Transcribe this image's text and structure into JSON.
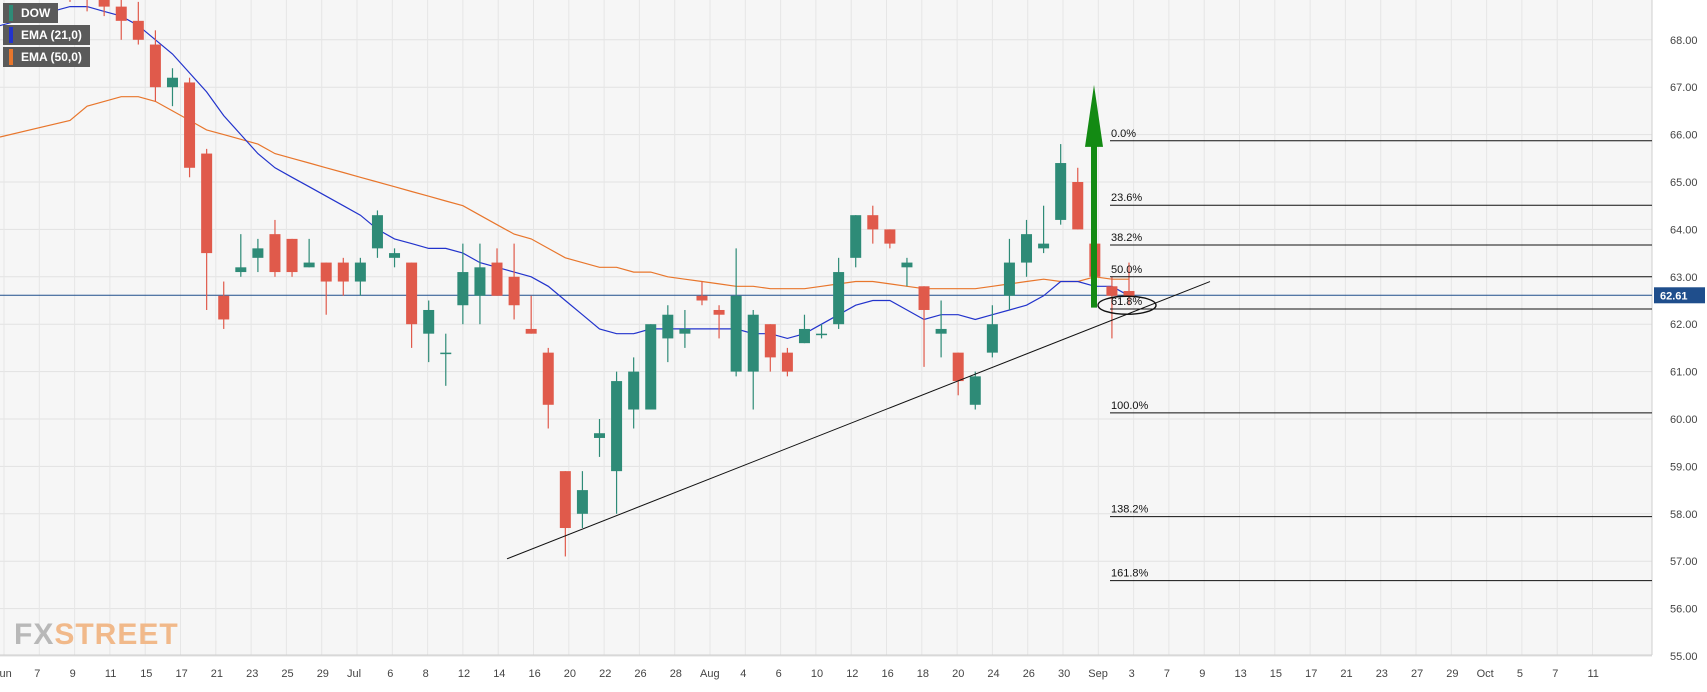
{
  "chart_data": {
    "type": "candlestick",
    "symbol": "DOW",
    "last_price_label": "62.61",
    "last_price": 62.61,
    "ylim": [
      55.0,
      69.0
    ],
    "y_ticks": [
      "68.00",
      "67.00",
      "66.00",
      "65.00",
      "64.00",
      "63.00",
      "62.00",
      "61.00",
      "60.00",
      "59.00",
      "58.00",
      "57.00",
      "56.00",
      "55.00"
    ],
    "x_ticks": [
      "Jun",
      "7",
      "9",
      "11",
      "15",
      "17",
      "21",
      "23",
      "25",
      "29",
      "Jul",
      "6",
      "8",
      "12",
      "14",
      "16",
      "20",
      "22",
      "26",
      "28",
      "Aug",
      "4",
      "6",
      "10",
      "12",
      "16",
      "18",
      "20",
      "24",
      "26",
      "30",
      "Sep",
      "3",
      "7",
      "9",
      "13",
      "15",
      "17",
      "21",
      "23",
      "27",
      "29",
      "Oct",
      "5",
      "7",
      "11"
    ],
    "grid": true,
    "legend": [
      {
        "label": "DOW",
        "color": "#2e8b77"
      },
      {
        "label": "EMA (21,0)",
        "color": "#2233cc"
      },
      {
        "label": "EMA (50,0)",
        "color": "#e8762c"
      }
    ],
    "candles": [
      [
        69.6,
        70.2,
        68.8,
        69.1
      ],
      [
        69.1,
        69.8,
        68.6,
        68.9
      ],
      [
        68.9,
        69.4,
        68.5,
        68.7
      ],
      [
        68.7,
        69.1,
        68.0,
        68.4
      ],
      [
        68.4,
        68.8,
        67.9,
        68.0
      ],
      [
        67.9,
        68.2,
        66.7,
        67.0
      ],
      [
        67.0,
        67.4,
        66.6,
        67.2
      ],
      [
        67.1,
        67.2,
        65.1,
        65.3
      ],
      [
        65.6,
        65.7,
        62.3,
        63.5
      ],
      [
        62.6,
        62.9,
        61.9,
        62.1
      ],
      [
        63.1,
        63.9,
        63.0,
        63.2
      ],
      [
        63.4,
        63.8,
        63.1,
        63.6
      ],
      [
        63.9,
        64.2,
        63.0,
        63.1
      ],
      [
        63.8,
        63.8,
        63.0,
        63.1
      ],
      [
        63.2,
        63.8,
        63.2,
        63.3
      ],
      [
        63.3,
        63.3,
        62.2,
        62.9
      ],
      [
        63.3,
        63.4,
        62.6,
        62.9
      ],
      [
        62.9,
        63.4,
        62.6,
        63.3
      ],
      [
        63.6,
        64.4,
        63.4,
        64.3
      ],
      [
        63.4,
        63.6,
        63.2,
        63.5
      ],
      [
        63.3,
        63.3,
        61.5,
        62.0
      ],
      [
        61.8,
        62.5,
        61.2,
        62.3
      ],
      [
        61.4,
        61.8,
        60.7,
        61.4
      ],
      [
        62.4,
        63.7,
        62.0,
        63.1
      ],
      [
        62.6,
        63.7,
        62.0,
        63.2
      ],
      [
        63.3,
        63.6,
        62.6,
        62.6
      ],
      [
        63.0,
        63.7,
        62.1,
        62.4
      ],
      [
        61.9,
        62.6,
        61.8,
        61.8
      ],
      [
        61.4,
        61.5,
        59.8,
        60.3
      ],
      [
        58.9,
        58.9,
        57.1,
        57.7
      ],
      [
        58.0,
        58.9,
        57.7,
        58.5
      ],
      [
        59.6,
        60.0,
        59.2,
        59.7
      ],
      [
        58.9,
        61.0,
        58.0,
        60.8
      ],
      [
        60.2,
        61.3,
        59.8,
        61.0
      ],
      [
        60.2,
        62.0,
        60.2,
        62.0
      ],
      [
        61.7,
        62.4,
        61.2,
        62.2
      ],
      [
        61.8,
        62.3,
        61.5,
        61.9
      ],
      [
        62.6,
        62.9,
        62.4,
        62.5
      ],
      [
        62.3,
        62.4,
        61.7,
        62.2
      ],
      [
        61.0,
        63.6,
        60.9,
        62.6
      ],
      [
        61.0,
        62.3,
        60.2,
        62.2
      ],
      [
        62.0,
        62.0,
        61.0,
        61.3
      ],
      [
        61.4,
        61.5,
        60.9,
        61.0
      ],
      [
        61.6,
        62.2,
        61.6,
        61.9
      ],
      [
        61.8,
        62.0,
        61.7,
        61.8
      ],
      [
        62.0,
        63.4,
        61.9,
        63.1
      ],
      [
        63.4,
        64.3,
        63.2,
        64.3
      ],
      [
        64.3,
        64.5,
        63.7,
        64.0
      ],
      [
        64.0,
        64.0,
        63.6,
        63.7
      ],
      [
        63.2,
        63.4,
        62.8,
        63.3
      ],
      [
        62.8,
        62.8,
        61.1,
        62.3
      ],
      [
        61.8,
        62.5,
        61.3,
        61.9
      ],
      [
        61.4,
        61.4,
        60.5,
        60.8
      ],
      [
        60.3,
        61.0,
        60.2,
        60.9
      ],
      [
        61.4,
        62.4,
        61.3,
        62.0
      ],
      [
        62.6,
        63.8,
        62.3,
        63.3
      ],
      [
        63.3,
        64.2,
        63.0,
        63.9
      ],
      [
        63.6,
        64.5,
        63.5,
        63.7
      ],
      [
        64.2,
        65.8,
        64.1,
        65.4
      ],
      [
        65.0,
        65.3,
        64.0,
        64.0
      ],
      [
        63.7,
        63.8,
        62.9,
        63.0
      ],
      [
        62.8,
        63.0,
        61.7,
        62.6
      ],
      [
        62.7,
        63.3,
        62.4,
        62.6
      ]
    ],
    "ema21": [
      68.7,
      68.7,
      68.6,
      68.5,
      68.3,
      68.0,
      67.7,
      67.3,
      66.9,
      66.4,
      66.0,
      65.6,
      65.3,
      65.1,
      64.9,
      64.7,
      64.5,
      64.3,
      64.0,
      63.8,
      63.7,
      63.6,
      63.6,
      63.5,
      63.3,
      63.2,
      63.1,
      63.0,
      62.8,
      62.5,
      62.2,
      61.9,
      61.8,
      61.8,
      61.9,
      61.9,
      61.9,
      61.9,
      61.9,
      61.9,
      61.8,
      61.8,
      61.7,
      61.8,
      62.0,
      62.2,
      62.4,
      62.5,
      62.5,
      62.3,
      62.1,
      62.2,
      62.2,
      62.1,
      62.2,
      62.3,
      62.4,
      62.6,
      62.9,
      62.9,
      62.8,
      62.8,
      62.6
    ],
    "ema50": [
      66.3,
      66.6,
      66.7,
      66.8,
      66.8,
      66.7,
      66.5,
      66.3,
      66.1,
      66.0,
      65.9,
      65.8,
      65.6,
      65.5,
      65.4,
      65.3,
      65.2,
      65.1,
      65.0,
      64.9,
      64.8,
      64.7,
      64.6,
      64.5,
      64.3,
      64.1,
      63.9,
      63.8,
      63.6,
      63.4,
      63.3,
      63.2,
      63.2,
      63.1,
      63.1,
      63.0,
      62.95,
      62.9,
      62.85,
      62.8,
      62.8,
      62.75,
      62.75,
      62.75,
      62.8,
      62.85,
      62.9,
      62.9,
      62.85,
      62.8,
      62.75,
      62.75,
      62.75,
      62.75,
      62.8,
      62.85,
      62.9,
      62.95,
      62.9,
      62.9,
      63.0,
      62.95,
      62.95
    ],
    "fibonacci": [
      {
        "label": "0.0%",
        "value": 65.87
      },
      {
        "label": "23.6%",
        "value": 64.51
      },
      {
        "label": "38.2%",
        "value": 63.67
      },
      {
        "label": "50.0%",
        "value": 63.0
      },
      {
        "label": "61.8%",
        "value": 62.32
      },
      {
        "label": "100.0%",
        "value": 60.13
      },
      {
        "label": "138.2%",
        "value": 57.94
      },
      {
        "label": "161.8%",
        "value": 56.59
      }
    ],
    "trendline": {
      "start": {
        "x": "Jul 17",
        "y": 57.05
      },
      "end": {
        "x": "Sep 16",
        "y": 62.9
      }
    },
    "arrow": {
      "x": "Sep 7",
      "from": 62.35,
      "to": 67.05,
      "color": "#138a13"
    },
    "ellipse": {
      "x": "Sep 9",
      "y": 62.4
    }
  },
  "branding": {
    "logo_fx": "FX",
    "logo_street": "STREET"
  }
}
